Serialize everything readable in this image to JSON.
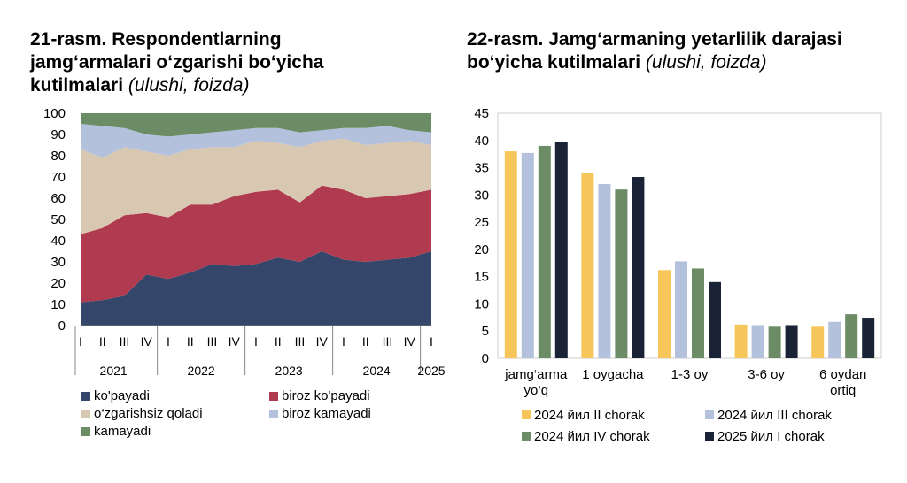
{
  "chart_data": [
    {
      "type": "area",
      "stacked": true,
      "title": "21-rasm. Respondentlarning jamg‘armalari o‘zgarishi bo‘yicha kutilmalari",
      "subtitle": "(ulushi, foizda)",
      "ylim": [
        0,
        100
      ],
      "yticks": [
        "0",
        "10",
        "20",
        "30",
        "40",
        "50",
        "60",
        "70",
        "80",
        "90",
        "100"
      ],
      "categories": [
        "I",
        "II",
        "III",
        "IV",
        "I",
        "II",
        "III",
        "IV",
        "I",
        "II",
        "III",
        "IV",
        "I",
        "II",
        "III",
        "IV",
        "I"
      ],
      "years": [
        "2021",
        "2022",
        "2023",
        "2024",
        "2025"
      ],
      "series": [
        {
          "name": "ko'payadi",
          "color": "#34476b",
          "values": [
            11,
            12,
            14,
            24,
            22,
            25,
            29,
            28,
            29,
            32,
            30,
            35,
            31,
            30,
            31,
            32,
            35
          ]
        },
        {
          "name": "biroz ko'payadi",
          "color": "#b03a4f",
          "values": [
            32,
            34,
            38,
            29,
            29,
            32,
            28,
            33,
            34,
            32,
            28,
            31,
            33,
            30,
            30,
            30,
            29
          ]
        },
        {
          "name": "o‘zgarishsiz qoladi",
          "color": "#d9c8b1",
          "values": [
            40,
            33,
            32,
            29,
            29,
            26,
            27,
            23,
            24,
            22,
            26,
            21,
            24,
            25,
            25,
            25,
            21
          ]
        },
        {
          "name": "biroz kamayadi",
          "color": "#b4c1dc",
          "values": [
            12,
            15,
            9,
            8,
            9,
            7,
            7,
            8,
            6,
            7,
            7,
            5,
            5,
            8,
            8,
            5,
            6
          ]
        },
        {
          "name": "kamayadi",
          "color": "#6b8c64",
          "values": [
            5,
            6,
            7,
            10,
            11,
            10,
            9,
            8,
            7,
            7,
            9,
            8,
            7,
            7,
            6,
            8,
            9
          ]
        }
      ]
    },
    {
      "type": "bar",
      "title": "22-rasm. Jamg‘armaning yetarlilik darajasi bo‘yicha kutilmalari",
      "subtitle": "(ulushi, foizda)",
      "ylim": [
        0,
        45
      ],
      "yticks": [
        "0",
        "5",
        "10",
        "15",
        "20",
        "25",
        "30",
        "35",
        "40",
        "45"
      ],
      "categories": [
        [
          "jamg‘arma",
          "yo‘q"
        ],
        [
          "1 oygacha"
        ],
        [
          "1-3 oy"
        ],
        [
          "3-6 oy"
        ],
        [
          "6 oydan",
          "ortiq"
        ]
      ],
      "series": [
        {
          "name": "2024 йил II chorak",
          "color": "#f6c65a",
          "values": [
            38,
            34,
            16.2,
            6.2,
            5.8
          ]
        },
        {
          "name": "2024 йил III chorak",
          "color": "#b4c1dc",
          "values": [
            37.7,
            32,
            17.8,
            6.1,
            6.7
          ]
        },
        {
          "name": "2024 йил IV chorak",
          "color": "#6b8c64",
          "values": [
            39,
            31,
            16.5,
            5.8,
            8.1
          ]
        },
        {
          "name": "2025 йил I chorak",
          "color": "#1a2236",
          "values": [
            39.7,
            33.3,
            14,
            6.1,
            7.3
          ]
        }
      ]
    }
  ],
  "titles": {
    "t1_main": "21-rasm. Respondentlarning jamg‘armalari o‘zgarishi bo‘yicha kutilmalari",
    "t1_sub": "(ulushi, foizda)",
    "t2_main": "22-rasm. Jamg‘armaning yetarlilik darajasi bo‘yicha kutilmalari",
    "t2_sub": "(ulushi, foizda)"
  }
}
